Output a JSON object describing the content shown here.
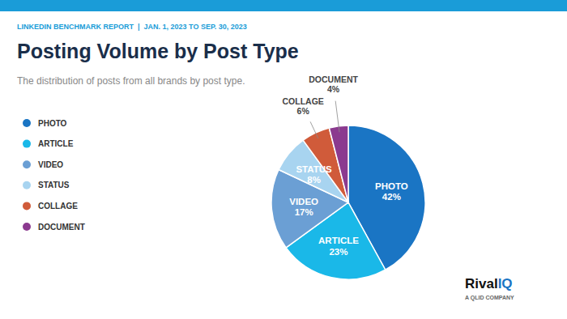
{
  "chart_data": {
    "type": "pie",
    "title": "Posting Volume by Post Type",
    "subtitle": "The distribution of posts from all brands by post type.",
    "annotations": [
      "LINKEDIN BENCHMARK REPORT  |  JAN. 1, 2023 TO SEP. 30, 2023",
      "Rival",
      "IQ",
      "A QLID COMPANY"
    ],
    "categories": [
      "PHOTO",
      "ARTICLE",
      "VIDEO",
      "STATUS",
      "COLLAGE",
      "DOCUMENT"
    ],
    "values": [
      42,
      23,
      17,
      8,
      6,
      4
    ],
    "value_labels": [
      "42%",
      "23%",
      "17%",
      "8%",
      "6%",
      "4%"
    ],
    "colors": [
      "#1a75c4",
      "#1ab8e8",
      "#6b9fd4",
      "#a8d4f0",
      "#d05b3a",
      "#8b3a8f"
    ],
    "data_labels": true,
    "legend": "left"
  }
}
